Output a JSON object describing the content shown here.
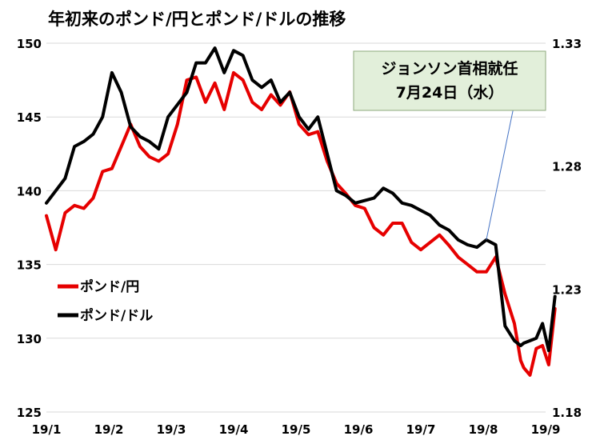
{
  "chart_data": {
    "type": "line",
    "title": "年初来のポンド/円とポンド/ドルの推移",
    "x_ticks": [
      "19/1",
      "19/2",
      "19/3",
      "19/4",
      "19/5",
      "19/6",
      "19/7",
      "19/8",
      "19/9"
    ],
    "y_left": {
      "ylim": [
        125,
        150
      ],
      "ticks": [
        "125",
        "130",
        "135",
        "140",
        "145",
        "150"
      ]
    },
    "y_right": {
      "ylim": [
        1.18,
        1.33
      ],
      "ticks": [
        "1.18",
        "1.23",
        "1.28",
        "1.33"
      ]
    },
    "grid": true,
    "legend_position": "left-bottom",
    "series": [
      {
        "name": "ポンド/円",
        "axis": "left",
        "color": "#e60000",
        "x": [
          0.0,
          0.15,
          0.3,
          0.45,
          0.6,
          0.75,
          0.9,
          1.05,
          1.2,
          1.35,
          1.5,
          1.65,
          1.8,
          1.95,
          2.1,
          2.25,
          2.4,
          2.55,
          2.7,
          2.85,
          3.0,
          3.15,
          3.3,
          3.45,
          3.6,
          3.75,
          3.9,
          4.05,
          4.2,
          4.35,
          4.5,
          4.65,
          4.8,
          4.95,
          5.1,
          5.25,
          5.4,
          5.55,
          5.7,
          5.85,
          6.0,
          6.15,
          6.3,
          6.45,
          6.6,
          6.75,
          6.9,
          7.05,
          7.2,
          7.35,
          7.5,
          7.6,
          7.65,
          7.75,
          7.85,
          7.95,
          8.05,
          8.15
        ],
        "values": [
          138.3,
          136.0,
          138.5,
          139.0,
          138.8,
          139.5,
          141.3,
          141.5,
          143.0,
          144.5,
          143.0,
          142.3,
          142.0,
          142.5,
          144.5,
          147.5,
          147.7,
          146.0,
          147.3,
          145.5,
          148.0,
          147.5,
          146.0,
          145.5,
          146.5,
          145.8,
          146.7,
          144.5,
          143.8,
          144.0,
          142.0,
          140.5,
          139.8,
          139.0,
          138.8,
          137.5,
          137.0,
          137.8,
          137.8,
          136.5,
          136.0,
          136.5,
          137.0,
          136.3,
          135.5,
          135.0,
          134.5,
          134.5,
          135.5,
          133.0,
          131.0,
          128.5,
          128.0,
          127.5,
          129.3,
          129.5,
          128.2,
          132.0
        ],
        "labels_visible": false
      },
      {
        "name": "ポンド/ドル",
        "axis": "right",
        "color": "#000000",
        "x": [
          0.0,
          0.15,
          0.3,
          0.45,
          0.6,
          0.75,
          0.9,
          1.05,
          1.2,
          1.35,
          1.5,
          1.65,
          1.8,
          1.95,
          2.1,
          2.25,
          2.4,
          2.55,
          2.7,
          2.85,
          3.0,
          3.15,
          3.3,
          3.45,
          3.6,
          3.75,
          3.9,
          4.05,
          4.2,
          4.35,
          4.5,
          4.65,
          4.8,
          4.95,
          5.1,
          5.25,
          5.4,
          5.55,
          5.7,
          5.85,
          6.0,
          6.15,
          6.3,
          6.45,
          6.6,
          6.75,
          6.9,
          7.05,
          7.2,
          7.35,
          7.5,
          7.6,
          7.65,
          7.75,
          7.85,
          7.95,
          8.05,
          8.15
        ],
        "values": [
          1.265,
          1.27,
          1.275,
          1.288,
          1.29,
          1.293,
          1.3,
          1.318,
          1.31,
          1.296,
          1.292,
          1.29,
          1.287,
          1.3,
          1.305,
          1.31,
          1.322,
          1.322,
          1.328,
          1.318,
          1.327,
          1.325,
          1.315,
          1.312,
          1.315,
          1.306,
          1.31,
          1.3,
          1.295,
          1.3,
          1.285,
          1.27,
          1.268,
          1.265,
          1.266,
          1.267,
          1.271,
          1.269,
          1.265,
          1.264,
          1.262,
          1.26,
          1.256,
          1.254,
          1.25,
          1.248,
          1.247,
          1.25,
          1.248,
          1.215,
          1.209,
          1.207,
          1.208,
          1.209,
          1.21,
          1.216,
          1.205,
          1.227
        ],
        "labels_visible": false
      }
    ],
    "annotation": {
      "lines": [
        "ジョンソン首相就任",
        "7月24日（水）"
      ],
      "target_series": "ポンド/ドル",
      "target_x": 7.0
    }
  }
}
